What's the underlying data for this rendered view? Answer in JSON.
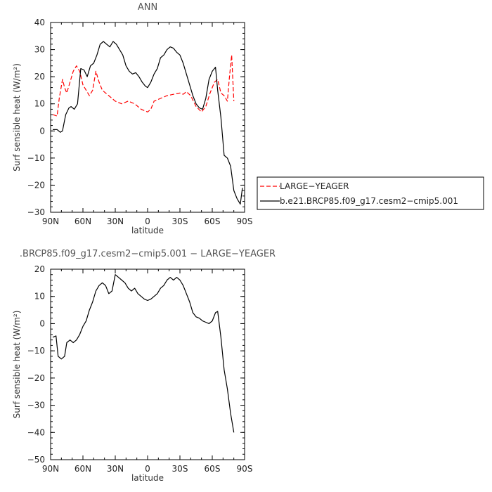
{
  "chart_data": [
    {
      "type": "line",
      "title": "ANN",
      "xlabel": "latitude",
      "ylabel": "Surf sensible heat (W/m²)",
      "ylim": [
        -30,
        40
      ],
      "xlim": [
        90,
        -90
      ],
      "x_ticks": [
        "90N",
        "60N",
        "30N",
        "0",
        "30S",
        "60S",
        "90S"
      ],
      "x_tick_values": [
        90,
        60,
        30,
        0,
        -30,
        -60,
        -90
      ],
      "y_ticks": [
        "40",
        "30",
        "20",
        "10",
        "0",
        "−10",
        "−20",
        "−30"
      ],
      "y_tick_values": [
        40,
        30,
        20,
        10,
        0,
        -10,
        -20,
        -30
      ],
      "legend": "right",
      "series": [
        {
          "name": "LARGE−YEAGER",
          "color": "#ff0000",
          "dash": true,
          "x": [
            88,
            84,
            82,
            79,
            77,
            75,
            72,
            69,
            66,
            63,
            60,
            57,
            54,
            51,
            48,
            45,
            42,
            39,
            36,
            33,
            30,
            24,
            18,
            12,
            6,
            0,
            -3,
            -6,
            -12,
            -18,
            -24,
            -30,
            -33,
            -36,
            -40,
            -45,
            -50,
            -54,
            -58,
            -62,
            -65,
            -68,
            -71,
            -74,
            -76,
            -78,
            -80
          ],
          "values": [
            6,
            5.5,
            12,
            19,
            16,
            14,
            18,
            22,
            24,
            22,
            17,
            15,
            13,
            15,
            22,
            18,
            15,
            14,
            13,
            12,
            11,
            10,
            11,
            10,
            8,
            7,
            8,
            11,
            12,
            13,
            13.5,
            14,
            13.5,
            14.5,
            13,
            9,
            7,
            9,
            14,
            18,
            19,
            14,
            13,
            11,
            20,
            28,
            11
          ]
        },
        {
          "name": "b.e21.BRCP85.f09_g17.cesm2−cmip5.001",
          "color": "#000000",
          "dash": false,
          "x": [
            88,
            84,
            81,
            79,
            76,
            73,
            71,
            68,
            65,
            62,
            59,
            56,
            53,
            50,
            47,
            44,
            41,
            38,
            35,
            32,
            29,
            26,
            23,
            20,
            17,
            14,
            11,
            8,
            5,
            2,
            0,
            -3,
            -6,
            -9,
            -12,
            -15,
            -18,
            -21,
            -24,
            -27,
            -30,
            -33,
            -36,
            -39,
            -42,
            -45,
            -48,
            -51,
            -54,
            -57,
            -60,
            -63,
            -65,
            -68,
            -71,
            -74,
            -77,
            -80,
            -83,
            -86,
            -88
          ],
          "values": [
            0.5,
            0.5,
            -0.5,
            0,
            6,
            8.5,
            9,
            8,
            10,
            23,
            22.5,
            20,
            24,
            25,
            28,
            32,
            33,
            32,
            31,
            33,
            32,
            30,
            28,
            24,
            22,
            21,
            21.5,
            20,
            18,
            16.5,
            16,
            18,
            21,
            23,
            27,
            28,
            30,
            31,
            30.5,
            29,
            28,
            25,
            21,
            17,
            13,
            10,
            8.5,
            8,
            12,
            19,
            22,
            23.5,
            15,
            5,
            -9,
            -10,
            -13,
            -22,
            -25,
            -27,
            -21
          ]
        }
      ]
    },
    {
      "type": "line",
      "title": ".BRCP85.f09_g17.cesm2−cmip5.001 − LARGE−YEAGER",
      "xlabel": "latitude",
      "ylabel": "Surf sensible heat (W/m²)",
      "ylim": [
        -50,
        20
      ],
      "xlim": [
        90,
        -90
      ],
      "x_ticks": [
        "90N",
        "60N",
        "30N",
        "0",
        "30S",
        "60S",
        "90S"
      ],
      "x_tick_values": [
        90,
        60,
        30,
        0,
        -30,
        -60,
        -90
      ],
      "y_ticks": [
        "20",
        "10",
        "0",
        "−10",
        "−20",
        "−30",
        "−40",
        "−50"
      ],
      "y_tick_values": [
        20,
        10,
        0,
        -10,
        -20,
        -30,
        -40,
        -50
      ],
      "series": [
        {
          "color": "#000000",
          "dash": false,
          "x": [
            88,
            85,
            83,
            80,
            77,
            75,
            72,
            69,
            66,
            63,
            60,
            57,
            54,
            51,
            48,
            45,
            42,
            39,
            36,
            33,
            30,
            27,
            24,
            21,
            18,
            15,
            12,
            9,
            6,
            3,
            0,
            -3,
            -6,
            -9,
            -12,
            -15,
            -18,
            -21,
            -24,
            -27,
            -30,
            -33,
            -36,
            -39,
            -42,
            -45,
            -48,
            -51,
            -54,
            -57,
            -60,
            -63,
            -65,
            -68,
            -71,
            -74,
            -77,
            -80
          ],
          "values": [
            -5,
            -4.5,
            -12,
            -13,
            -12,
            -7,
            -6,
            -7,
            -6,
            -4,
            -1,
            1,
            5,
            8,
            12,
            14,
            15,
            14,
            11,
            12,
            18,
            17,
            16,
            15,
            13,
            12,
            13,
            11,
            10,
            9,
            8.5,
            9,
            10,
            11,
            13,
            14,
            16,
            17,
            16,
            17,
            16,
            14,
            11,
            8,
            4,
            2.5,
            2,
            1,
            0.5,
            0,
            1,
            4,
            4.5,
            -5,
            -17,
            -24,
            -33,
            -40
          ]
        }
      ]
    }
  ]
}
